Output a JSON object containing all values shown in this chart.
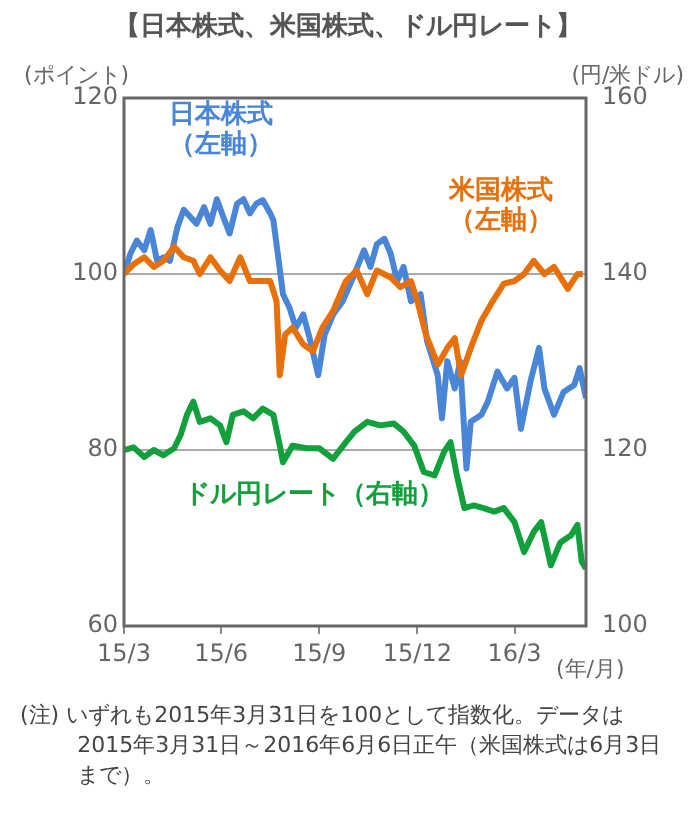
{
  "chart_data": {
    "type": "line",
    "title": "【日本株式、米国株式、ドル円レート】",
    "ylabel": "(ポイント)",
    "y2label": "(円/米ドル)",
    "xlabel": "(年/月)",
    "xlim": [
      "2015-03-31",
      "2016-06-06"
    ],
    "xticks": [
      {
        "value": "2015-03-31",
        "label": "15/3"
      },
      {
        "value": "2015-06-30",
        "label": "15/6"
      },
      {
        "value": "2015-09-30",
        "label": "15/9"
      },
      {
        "value": "2015-12-31",
        "label": "15/12"
      },
      {
        "value": "2016-03-31",
        "label": "16/3"
      }
    ],
    "ylim": [
      60,
      120
    ],
    "yticks": [
      60,
      80,
      100,
      120
    ],
    "y2lim": [
      100,
      160
    ],
    "y2ticks": [
      100,
      120,
      140,
      160
    ],
    "grid": "y",
    "legend": false,
    "series": [
      {
        "name": "日本株式（左軸）",
        "color": "#4a86d8",
        "x": [
          "2015-03-31",
          "2015-04-06",
          "2015-04-12",
          "2015-04-19",
          "2015-04-25",
          "2015-05-01",
          "2015-05-07",
          "2015-05-13",
          "2015-05-20",
          "2015-05-26",
          "2015-06-01",
          "2015-06-07",
          "2015-06-14",
          "2015-06-20",
          "2015-06-26",
          "2015-07-02",
          "2015-07-08",
          "2015-07-15",
          "2015-07-21",
          "2015-07-27",
          "2015-08-02",
          "2015-08-08",
          "2015-08-15",
          "2015-08-18",
          "2015-08-23",
          "2015-08-27",
          "2015-09-02",
          "2015-09-08",
          "2015-09-15",
          "2015-09-21",
          "2015-09-29",
          "2015-10-05",
          "2015-10-13",
          "2015-10-22",
          "2015-11-02",
          "2015-11-11",
          "2015-11-17",
          "2015-11-23",
          "2015-11-30",
          "2015-12-06",
          "2015-12-12",
          "2015-12-18",
          "2015-12-25",
          "2016-01-03",
          "2016-01-09",
          "2016-01-19",
          "2016-01-23",
          "2016-01-28",
          "2016-02-04",
          "2016-02-09",
          "2016-02-15",
          "2016-02-19",
          "2016-02-29",
          "2016-03-06",
          "2016-03-15",
          "2016-03-24",
          "2016-03-31",
          "2016-04-06",
          "2016-04-15",
          "2016-04-23",
          "2016-04-28",
          "2016-05-07",
          "2016-05-16",
          "2016-05-26",
          "2016-05-31",
          "2016-06-06"
        ],
        "values": [
          100,
          102.3,
          103.8,
          102.7,
          105,
          101.5,
          101.9,
          101.5,
          105.3,
          107.3,
          106.5,
          105.7,
          107.6,
          105.7,
          108.5,
          106.5,
          104.6,
          108,
          108.5,
          106.9,
          108,
          108.4,
          106.9,
          106.1,
          101.5,
          97.7,
          96.2,
          93.9,
          95.4,
          92.7,
          88.5,
          93.1,
          95.4,
          96.9,
          100,
          102.7,
          100.8,
          103.4,
          104,
          102.3,
          99.2,
          100.8,
          96.9,
          97.7,
          92.4,
          88.5,
          83.6,
          90.1,
          87,
          90.1,
          77.9,
          83.2,
          84,
          85.5,
          88.9,
          87,
          88.2,
          82.4,
          87.8,
          91.6,
          87,
          84,
          86.6,
          87.4,
          89.3,
          85.9
        ]
      },
      {
        "name": "米国株式（左軸）",
        "color": "#e8700a",
        "x": [
          "2015-03-31",
          "2015-04-09",
          "2015-04-19",
          "2015-04-28",
          "2015-05-07",
          "2015-05-17",
          "2015-05-26",
          "2015-06-04",
          "2015-06-10",
          "2015-06-20",
          "2015-06-29",
          "2015-07-08",
          "2015-07-18",
          "2015-07-27",
          "2015-08-05",
          "2015-08-15",
          "2015-08-21",
          "2015-08-24",
          "2015-08-29",
          "2015-09-05",
          "2015-09-15",
          "2015-09-24",
          "2015-10-03",
          "2015-10-13",
          "2015-10-25",
          "2015-11-04",
          "2015-11-14",
          "2015-11-23",
          "2015-12-06",
          "2015-12-15",
          "2015-12-25",
          "2015-12-31",
          "2016-01-08",
          "2016-01-19",
          "2016-01-28",
          "2016-02-04",
          "2016-02-10",
          "2016-02-19",
          "2016-02-29",
          "2016-03-09",
          "2016-03-21",
          "2016-03-31",
          "2016-04-09",
          "2016-04-18",
          "2016-04-28",
          "2016-05-07",
          "2016-05-20",
          "2016-05-29",
          "2016-06-03"
        ],
        "values": [
          100,
          101.1,
          101.9,
          100.8,
          101.5,
          103.1,
          101.9,
          101.5,
          100,
          101.9,
          100.4,
          99.2,
          101.9,
          99.2,
          99.2,
          99.2,
          96.9,
          88.5,
          93.1,
          93.9,
          92,
          91.2,
          93.9,
          95.8,
          99.2,
          100.4,
          97.7,
          100.4,
          99.6,
          98.5,
          99.2,
          96.9,
          93.1,
          89.7,
          91.6,
          92.7,
          88.5,
          91.6,
          94.7,
          96.6,
          98.9,
          99.2,
          100,
          101.5,
          100,
          100.8,
          98.3,
          100,
          100
        ]
      },
      {
        "name": "ドル円レート（右軸）",
        "color": "#12a03c",
        "axis": "y2",
        "x": [
          "2015-03-31",
          "2015-04-09",
          "2015-04-19",
          "2015-04-28",
          "2015-05-07",
          "2015-05-17",
          "2015-05-23",
          "2015-05-29",
          "2015-06-04",
          "2015-06-10",
          "2015-06-20",
          "2015-06-29",
          "2015-07-05",
          "2015-07-11",
          "2015-07-21",
          "2015-07-30",
          "2015-08-08",
          "2015-08-18",
          "2015-08-24",
          "2015-08-27",
          "2015-09-05",
          "2015-09-18",
          "2015-09-30",
          "2015-10-13",
          "2015-10-25",
          "2015-11-02",
          "2015-11-14",
          "2015-11-26",
          "2015-12-09",
          "2015-12-18",
          "2015-12-28",
          "2016-01-06",
          "2016-01-16",
          "2016-01-25",
          "2016-01-31",
          "2016-02-06",
          "2016-02-13",
          "2016-02-22",
          "2016-03-02",
          "2016-03-12",
          "2016-03-21",
          "2016-03-31",
          "2016-04-09",
          "2016-04-18",
          "2016-04-25",
          "2016-05-04",
          "2016-05-13",
          "2016-05-23",
          "2016-05-29",
          "2016-06-02",
          "2016-06-06"
        ],
        "values": [
          120,
          120.3,
          119.2,
          120,
          119.4,
          120.2,
          121.7,
          124,
          125.5,
          123.2,
          123.6,
          122.8,
          120.9,
          124,
          124.4,
          123.6,
          124.7,
          124,
          120.5,
          118.6,
          120.5,
          120.2,
          120.2,
          119,
          120.9,
          122.1,
          123.2,
          122.8,
          123,
          122.1,
          120.5,
          117.5,
          117.1,
          119.8,
          120.9,
          117.1,
          113.4,
          113.7,
          113.4,
          113,
          113.4,
          111.8,
          108.4,
          110.7,
          111.8,
          106.9,
          109.5,
          110.3,
          111.5,
          107.3,
          106.5
        ]
      }
    ],
    "annotations": [
      "(注) いずれも2015年3月31日を100として指数化。データは2015年3月31日～2016年6月6日正午（米国株式は6月3日まで）。"
    ]
  }
}
